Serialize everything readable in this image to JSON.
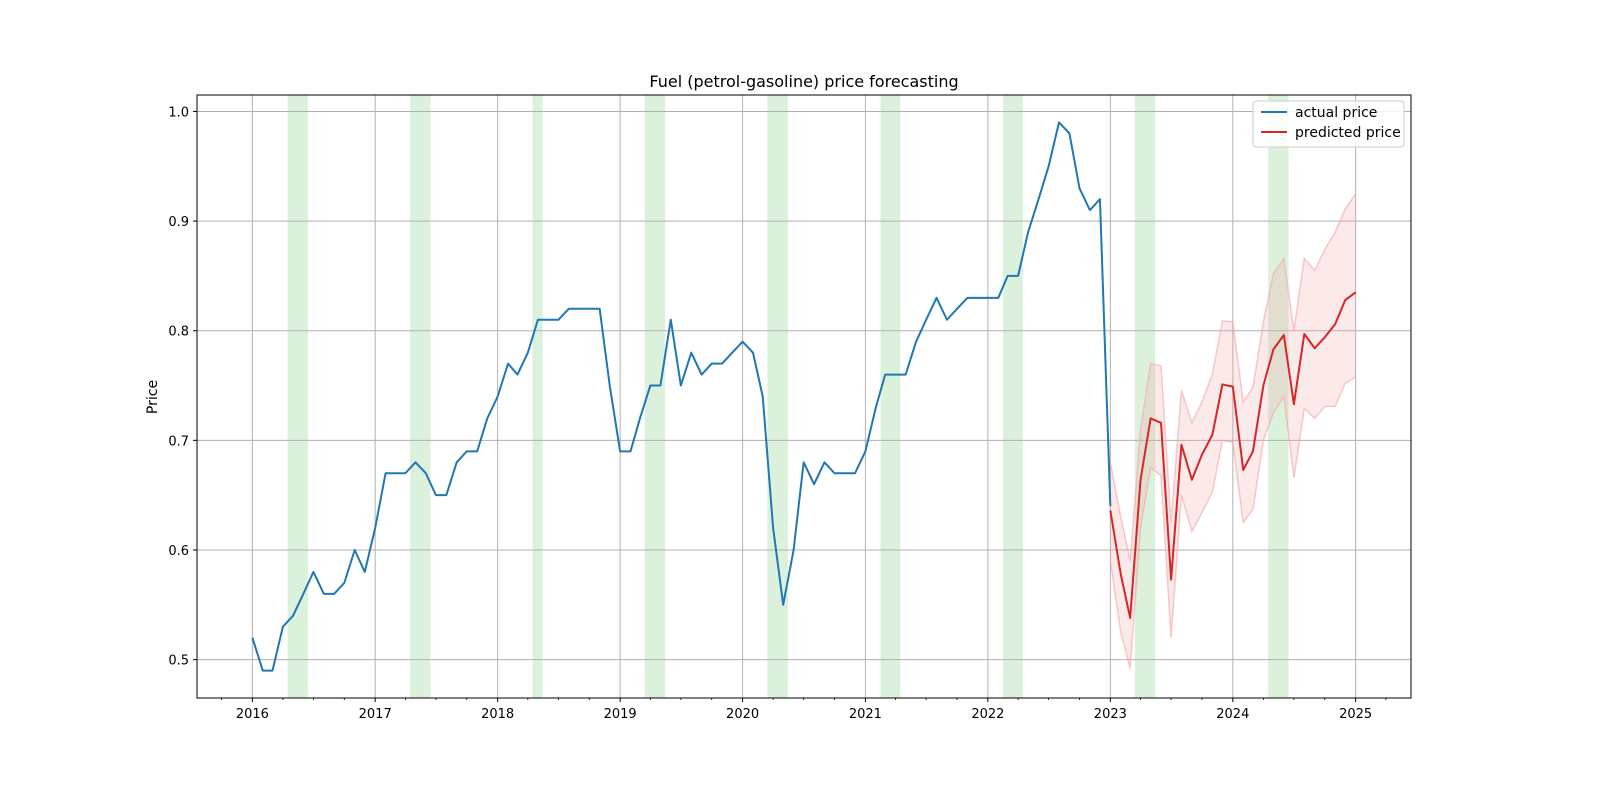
{
  "chart_data": {
    "type": "line",
    "title": "Fuel (petrol-gasoline) price forecasting",
    "xlabel": "",
    "ylabel": "Price",
    "xlim": [
      "2015-07-20",
      "2025-06-15"
    ],
    "ylim": [
      0.465,
      1.015
    ],
    "x_ticks": [
      "2016",
      "2017",
      "2018",
      "2019",
      "2020",
      "2021",
      "2022",
      "2023",
      "2024",
      "2025"
    ],
    "y_ticks": [
      "0.5",
      "0.6",
      "0.7",
      "0.8",
      "0.9",
      "1.0"
    ],
    "grid": true,
    "legend_position": "top-right",
    "colors": {
      "actual": "#1f77b4",
      "predicted": "#d62728",
      "band": "#f4a6a6",
      "shading": "#d6efd6",
      "grid": "#b0b0b0"
    },
    "shaded_periods": [
      [
        "2016-04-15",
        "2016-06-15"
      ],
      [
        "2017-04-15",
        "2017-06-15"
      ],
      [
        "2018-04-15",
        "2018-05-15"
      ],
      [
        "2019-03-15",
        "2019-05-15"
      ],
      [
        "2020-03-15",
        "2020-05-15"
      ],
      [
        "2021-02-15",
        "2021-04-15"
      ],
      [
        "2022-02-15",
        "2022-04-15"
      ],
      [
        "2023-03-15",
        "2023-05-15"
      ],
      [
        "2024-04-15",
        "2024-06-15"
      ]
    ],
    "series": [
      {
        "name": "actual price",
        "x": [
          "2016-01",
          "2016-02",
          "2016-03",
          "2016-04",
          "2016-05",
          "2016-06",
          "2016-07",
          "2016-08",
          "2016-09",
          "2016-10",
          "2016-11",
          "2016-12",
          "2017-01",
          "2017-02",
          "2017-03",
          "2017-04",
          "2017-05",
          "2017-06",
          "2017-07",
          "2017-08",
          "2017-09",
          "2017-10",
          "2017-11",
          "2017-12",
          "2018-01",
          "2018-02",
          "2018-03",
          "2018-04",
          "2018-05",
          "2018-06",
          "2018-07",
          "2018-08",
          "2018-09",
          "2018-10",
          "2018-11",
          "2018-12",
          "2019-01",
          "2019-02",
          "2019-03",
          "2019-04",
          "2019-05",
          "2019-06",
          "2019-07",
          "2019-08",
          "2019-09",
          "2019-10",
          "2019-11",
          "2019-12",
          "2020-01",
          "2020-02",
          "2020-03",
          "2020-04",
          "2020-05",
          "2020-06",
          "2020-07",
          "2020-08",
          "2020-09",
          "2020-10",
          "2020-11",
          "2020-12",
          "2021-01",
          "2021-02",
          "2021-03",
          "2021-04",
          "2021-05",
          "2021-06",
          "2021-07",
          "2021-08",
          "2021-09",
          "2021-10",
          "2021-11",
          "2021-12",
          "2022-01",
          "2022-02",
          "2022-03",
          "2022-04",
          "2022-05",
          "2022-06",
          "2022-07",
          "2022-08",
          "2022-09",
          "2022-10",
          "2022-11",
          "2022-12",
          "2023-01"
        ],
        "values": [
          0.52,
          0.49,
          0.49,
          0.53,
          0.54,
          0.56,
          0.58,
          0.56,
          0.56,
          0.57,
          0.6,
          0.58,
          0.62,
          0.67,
          0.67,
          0.67,
          0.68,
          0.67,
          0.65,
          0.65,
          0.68,
          0.69,
          0.69,
          0.72,
          0.74,
          0.77,
          0.76,
          0.78,
          0.81,
          0.81,
          0.81,
          0.82,
          0.82,
          0.82,
          0.82,
          0.75,
          0.69,
          0.69,
          0.72,
          0.75,
          0.75,
          0.81,
          0.75,
          0.78,
          0.76,
          0.77,
          0.77,
          0.78,
          0.79,
          0.78,
          0.74,
          0.62,
          0.55,
          0.6,
          0.68,
          0.66,
          0.68,
          0.67,
          0.67,
          0.67,
          0.69,
          0.73,
          0.76,
          0.76,
          0.76,
          0.79,
          0.81,
          0.83,
          0.81,
          0.82,
          0.83,
          0.83,
          0.83,
          0.83,
          0.85,
          0.85,
          0.89,
          0.92,
          0.95,
          0.99,
          0.98,
          0.93,
          0.91,
          0.92,
          0.64
        ]
      },
      {
        "name": "predicted price",
        "x": [
          "2023-01",
          "2023-02",
          "2023-03",
          "2023-04",
          "2023-05",
          "2023-06",
          "2023-07",
          "2023-08",
          "2023-09",
          "2023-10",
          "2023-11",
          "2023-12",
          "2024-01",
          "2024-02",
          "2024-03",
          "2024-04",
          "2024-05",
          "2024-06",
          "2024-07",
          "2024-08",
          "2024-09",
          "2024-10",
          "2024-11",
          "2024-12",
          "2025-01"
        ],
        "values": [
          0.636,
          0.578,
          0.538,
          0.664,
          0.72,
          0.716,
          0.573,
          0.696,
          0.664,
          0.687,
          0.705,
          0.751,
          0.749,
          0.673,
          0.69,
          0.75,
          0.783,
          0.796,
          0.733,
          0.797,
          0.784,
          0.794,
          0.806,
          0.828,
          0.835
        ],
        "lower": [
          0.59,
          0.525,
          0.492,
          0.62,
          0.675,
          0.668,
          0.52,
          0.65,
          0.617,
          0.634,
          0.653,
          0.7,
          0.698,
          0.625,
          0.637,
          0.7,
          0.725,
          0.74,
          0.666,
          0.729,
          0.72,
          0.731,
          0.731,
          0.752,
          0.758
        ],
        "upper": [
          0.68,
          0.63,
          0.59,
          0.71,
          0.77,
          0.768,
          0.625,
          0.746,
          0.716,
          0.735,
          0.76,
          0.809,
          0.808,
          0.735,
          0.748,
          0.808,
          0.852,
          0.866,
          0.8,
          0.866,
          0.855,
          0.874,
          0.89,
          0.911,
          0.925
        ]
      }
    ]
  }
}
